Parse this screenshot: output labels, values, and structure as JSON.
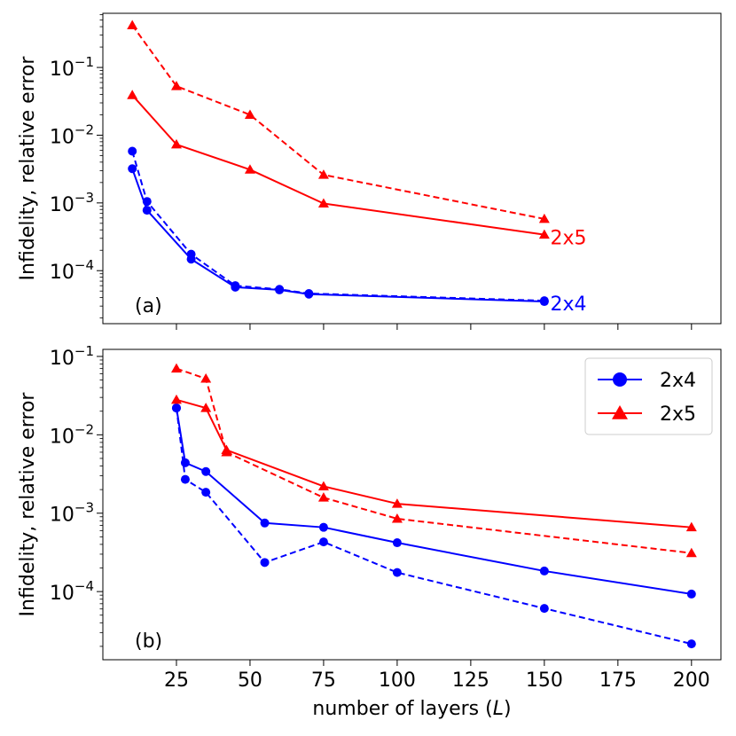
{
  "chart_data": [
    {
      "type": "line",
      "panel_label": "(a)",
      "ylabel": "Infidelity, relative error",
      "xlabel": "",
      "xlim": [
        0,
        210
      ],
      "ylim": [
        1.65e-05,
        0.63
      ],
      "yscale": "log",
      "x_ticks": [
        25,
        50,
        75,
        100,
        125,
        150,
        175,
        200
      ],
      "x_tick_labels_visible": false,
      "y_ticks": [
        {
          "value": 0.1,
          "base": "10",
          "exp": "−1"
        },
        {
          "value": 0.01,
          "base": "10",
          "exp": "−2"
        },
        {
          "value": 0.001,
          "base": "10",
          "exp": "−3"
        },
        {
          "value": 0.0001,
          "base": "10",
          "exp": "−4"
        }
      ],
      "series": [
        {
          "name": "2x4 infidelity",
          "color": "#0000ff",
          "marker": "circle",
          "dash": false,
          "x": [
            10,
            15,
            30,
            45,
            60,
            70,
            150
          ],
          "y": [
            0.0032,
            0.00078,
            0.000148,
            5.7e-05,
            5.2e-05,
            4.5e-05,
            3.5e-05
          ]
        },
        {
          "name": "2x4 relative error",
          "color": "#0000ff",
          "marker": "circle",
          "dash": true,
          "x": [
            10,
            15,
            30,
            45,
            60,
            70,
            150
          ],
          "y": [
            0.0058,
            0.00105,
            0.000175,
            6e-05,
            5.3e-05,
            4.6e-05,
            3.6e-05
          ]
        },
        {
          "name": "2x5 infidelity",
          "color": "#ff0000",
          "marker": "triangle",
          "dash": false,
          "x": [
            10,
            25,
            50,
            75,
            150
          ],
          "y": [
            0.039,
            0.0073,
            0.0031,
            0.00098,
            0.00034
          ]
        },
        {
          "name": "2x5 relative error",
          "color": "#ff0000",
          "marker": "triangle",
          "dash": true,
          "x": [
            10,
            25,
            50,
            75,
            150
          ],
          "y": [
            0.42,
            0.053,
            0.02,
            0.0026,
            0.00058
          ]
        }
      ],
      "annotations": [
        {
          "text": "2x5",
          "color": "#ff0000",
          "x": 152,
          "y": 0.00031
        },
        {
          "text": "2x4",
          "color": "#0000ff",
          "x": 152,
          "y": 3.3e-05
        }
      ]
    },
    {
      "type": "line",
      "panel_label": "(b)",
      "ylabel": "Infidelity, relative error",
      "xlabel": "number of layers (",
      "xlabel_var": "L",
      "xlabel_end": ")",
      "xlim": [
        0,
        210
      ],
      "ylim": [
        1.35e-05,
        0.123
      ],
      "yscale": "log",
      "x_ticks": [
        25,
        50,
        75,
        100,
        125,
        150,
        175,
        200
      ],
      "x_tick_labels": [
        "25",
        "50",
        "75",
        "100",
        "125",
        "150",
        "175",
        "200"
      ],
      "y_ticks": [
        {
          "value": 0.1,
          "base": "10",
          "exp": "−1"
        },
        {
          "value": 0.01,
          "base": "10",
          "exp": "−2"
        },
        {
          "value": 0.001,
          "base": "10",
          "exp": "−3"
        },
        {
          "value": 0.0001,
          "base": "10",
          "exp": "−4"
        }
      ],
      "series": [
        {
          "name": "2x4 infidelity",
          "color": "#0000ff",
          "marker": "circle",
          "dash": false,
          "x": [
            25,
            28,
            35,
            55,
            75,
            100,
            150,
            200
          ],
          "y": [
            0.022,
            0.0044,
            0.0034,
            0.00075,
            0.00066,
            0.00042,
            0.000183,
            9.3e-05
          ]
        },
        {
          "name": "2x4 relative error",
          "color": "#0000ff",
          "marker": "circle",
          "dash": true,
          "x": [
            25,
            28,
            35,
            55,
            75,
            100,
            150,
            200
          ],
          "y": [
            0.022,
            0.0027,
            0.00185,
            0.000235,
            0.00043,
            0.000175,
            6.1e-05,
            2.15e-05
          ]
        },
        {
          "name": "2x5 infidelity",
          "color": "#ff0000",
          "marker": "triangle",
          "dash": false,
          "x": [
            25,
            35,
            42,
            75,
            100,
            200
          ],
          "y": [
            0.028,
            0.022,
            0.0064,
            0.0022,
            0.00132,
            0.00066
          ]
        },
        {
          "name": "2x5 relative error",
          "color": "#ff0000",
          "marker": "triangle",
          "dash": true,
          "x": [
            25,
            35,
            42,
            75,
            100,
            200
          ],
          "y": [
            0.07,
            0.052,
            0.006,
            0.00158,
            0.00085,
            0.00031
          ]
        }
      ],
      "legend": {
        "position": "top-right",
        "entries": [
          {
            "label": "2x4",
            "color": "#0000ff",
            "marker": "circle"
          },
          {
            "label": "2x5",
            "color": "#ff0000",
            "marker": "triangle"
          }
        ]
      }
    }
  ]
}
